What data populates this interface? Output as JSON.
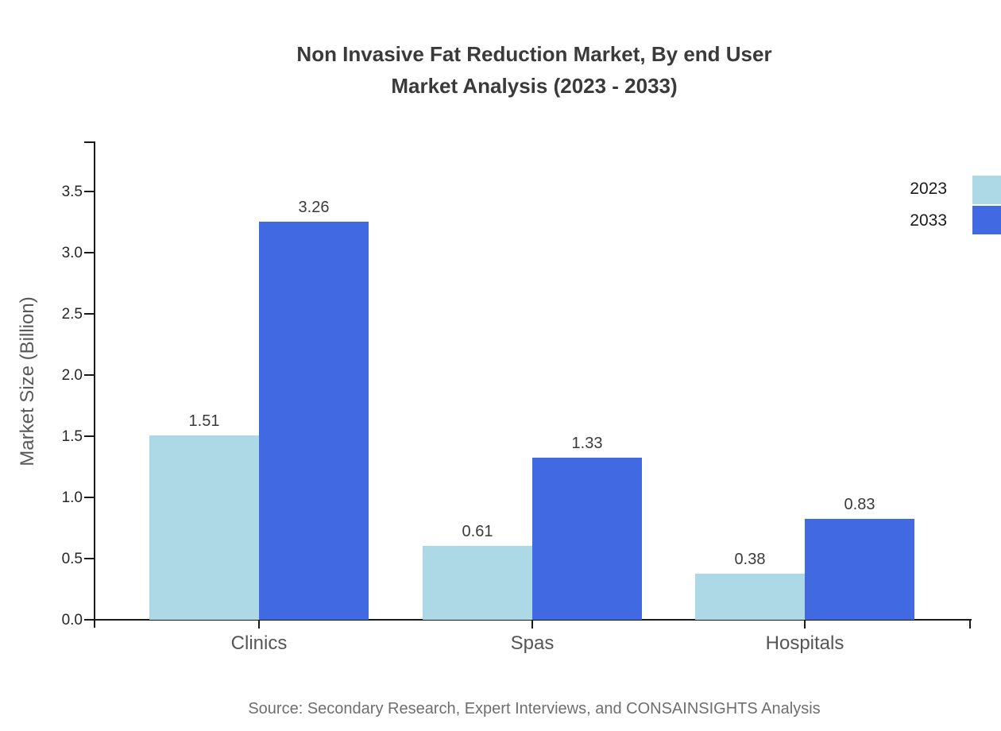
{
  "chart_data": {
    "type": "bar",
    "title": "Non Invasive Fat Reduction Market, By end User Market Analysis (2023 - 2033)",
    "title_lines": [
      "Non Invasive Fat Reduction Market, By end User",
      "Market Analysis (2023 - 2033)"
    ],
    "categories": [
      "Clinics",
      "Spas",
      "Hospitals"
    ],
    "series": [
      {
        "name": "2023",
        "color": "#add8e6",
        "values": [
          1.51,
          0.61,
          0.38
        ]
      },
      {
        "name": "2033",
        "color": "#4169e1",
        "values": [
          3.26,
          1.33,
          0.83
        ]
      }
    ],
    "xlabel": "",
    "ylabel": "Market Size (Billion)",
    "ylim": [
      0,
      3.9
    ],
    "yticks": [
      0.0,
      0.5,
      1.0,
      1.5,
      2.0,
      2.5,
      3.0,
      3.5
    ],
    "grid": false,
    "value_labels_shown": true,
    "legend_position": "upper-right-edge",
    "source_note": "Source: Secondary Research, Expert Interviews, and CONSAINSIGHTS Analysis"
  },
  "colors": {
    "series_2023": "#add8e6",
    "series_2033": "#4169e1",
    "axis": "#1a1a1a",
    "title_text": "#3a3a3a",
    "tick_label_text": "#262626",
    "category_label_text": "#565656",
    "value_label_text": "#3a3a3a",
    "legend_text": "#1a1a1a",
    "axis_title_text": "#595959",
    "source_text": "#6e6e6e",
    "background": "#ffffff"
  }
}
